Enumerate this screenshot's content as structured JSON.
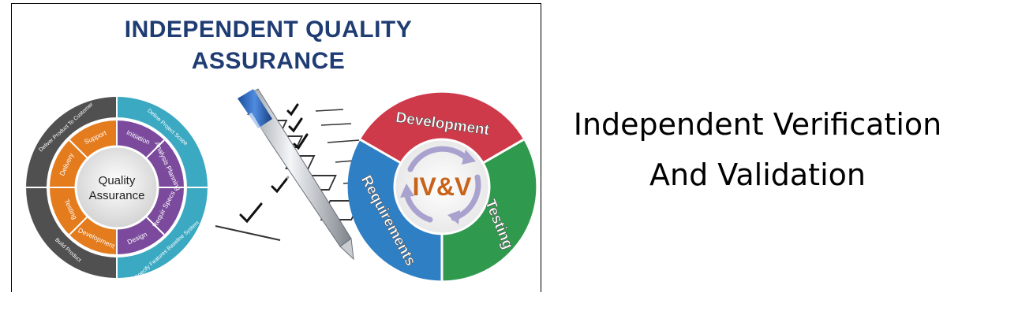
{
  "title_line1": "INDEPENDENT QUALITY",
  "title_line2": "ASSURANCE",
  "qa_wheel": {
    "center": [
      "Quality",
      "Assurance"
    ],
    "inner_segments": [
      "Support",
      "Initiation",
      "Analysis Planning",
      "Requir Specs",
      "Design",
      "Development",
      "Testing",
      "Delivery"
    ],
    "outer_labels": [
      "Deliver Product To Customer",
      "Define Project Scope",
      "Specify Features Baseline System",
      "Build Product"
    ]
  },
  "ivv_wheel": {
    "center": "IV&V",
    "segments": [
      "Development",
      "Testing",
      "Requirements"
    ]
  },
  "caption_line1": "Independent Verification",
  "caption_line2": "And Validation",
  "colors": {
    "title": "#1f3c73",
    "qa_outer_dark": "#505050",
    "qa_outer_teal": "#3aa9c1",
    "qa_orange": "#e47b1d",
    "qa_purple": "#7b4a9c",
    "ivv_red": "#cf3a4a",
    "ivv_green": "#2f9a4e",
    "ivv_blue": "#2f7fc4",
    "ivv_text": "#c8641a"
  }
}
